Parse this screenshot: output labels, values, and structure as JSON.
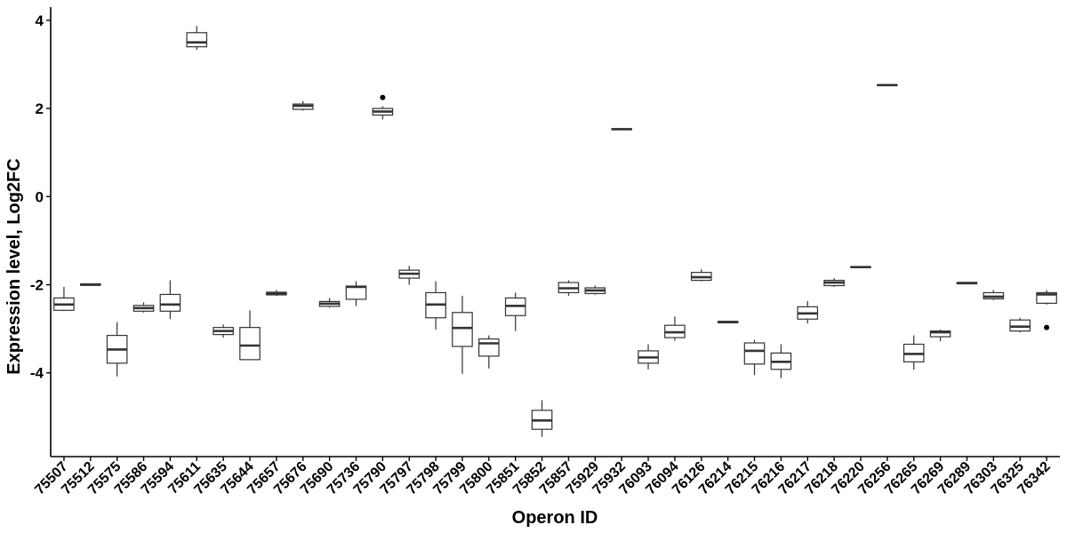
{
  "chart_data": {
    "type": "boxplot",
    "title": "",
    "xlabel": "Operon ID",
    "ylabel": "Expression level, Log2FC",
    "ylim": [
      -5.9,
      4.3
    ],
    "y_ticks": [
      4,
      2,
      0,
      -2,
      -4
    ],
    "y_tick_labels": [
      "4",
      "2",
      "0",
      "-2",
      "-4"
    ],
    "grid": false,
    "legend": "none",
    "colors": {
      "box_fill": "#ffffff",
      "stroke": "#333333",
      "axis": "#000000"
    },
    "categories": [
      "75507",
      "75512",
      "75575",
      "75586",
      "75594",
      "75611",
      "75635",
      "75644",
      "75657",
      "75676",
      "75690",
      "75736",
      "75790",
      "75797",
      "75798",
      "75799",
      "75800",
      "75851",
      "75852",
      "75857",
      "75929",
      "75932",
      "76093",
      "76094",
      "76126",
      "76214",
      "76215",
      "76216",
      "76217",
      "76218",
      "76220",
      "76256",
      "76265",
      "76269",
      "76289",
      "76303",
      "76325",
      "76342"
    ],
    "boxes": [
      {
        "id": "75507",
        "low": -2.6,
        "q1": -2.58,
        "median": -2.45,
        "q3": -2.3,
        "high": -2.05,
        "outliers": []
      },
      {
        "id": "75512",
        "low": -2.02,
        "q1": -2.01,
        "median": -2.0,
        "q3": -1.98,
        "high": -1.97,
        "outliers": []
      },
      {
        "id": "75575",
        "low": -4.08,
        "q1": -3.78,
        "median": -3.47,
        "q3": -3.15,
        "high": -2.85,
        "outliers": []
      },
      {
        "id": "75586",
        "low": -2.63,
        "q1": -2.6,
        "median": -2.53,
        "q3": -2.47,
        "high": -2.4,
        "outliers": []
      },
      {
        "id": "75594",
        "low": -2.78,
        "q1": -2.6,
        "median": -2.45,
        "q3": -2.22,
        "high": -1.9,
        "outliers": []
      },
      {
        "id": "75611",
        "low": 3.33,
        "q1": 3.4,
        "median": 3.5,
        "q3": 3.72,
        "high": 3.87,
        "outliers": []
      },
      {
        "id": "75635",
        "low": -3.2,
        "q1": -3.13,
        "median": -3.05,
        "q3": -2.97,
        "high": -2.9,
        "outliers": []
      },
      {
        "id": "75644",
        "low": -3.7,
        "q1": -3.7,
        "median": -3.38,
        "q3": -2.97,
        "high": -2.58,
        "outliers": []
      },
      {
        "id": "75657",
        "low": -2.25,
        "q1": -2.23,
        "median": -2.2,
        "q3": -2.17,
        "high": -2.12,
        "outliers": []
      },
      {
        "id": "75676",
        "low": 1.95,
        "q1": 1.98,
        "median": 2.06,
        "q3": 2.1,
        "high": 2.17,
        "outliers": []
      },
      {
        "id": "75690",
        "low": -2.52,
        "q1": -2.49,
        "median": -2.43,
        "q3": -2.38,
        "high": -2.3,
        "outliers": []
      },
      {
        "id": "75736",
        "low": -2.48,
        "q1": -2.33,
        "median": -2.05,
        "q3": -2.03,
        "high": -1.92,
        "outliers": []
      },
      {
        "id": "75790",
        "low": 1.75,
        "q1": 1.85,
        "median": 1.93,
        "q3": 2.0,
        "high": 2.05,
        "outliers": [
          2.25
        ]
      },
      {
        "id": "75797",
        "low": -2.0,
        "q1": -1.85,
        "median": -1.75,
        "q3": -1.67,
        "high": -1.57,
        "outliers": []
      },
      {
        "id": "75798",
        "low": -3.02,
        "q1": -2.75,
        "median": -2.45,
        "q3": -2.18,
        "high": -1.92,
        "outliers": []
      },
      {
        "id": "75799",
        "low": -4.02,
        "q1": -3.4,
        "median": -2.98,
        "q3": -2.63,
        "high": -2.25,
        "outliers": []
      },
      {
        "id": "75800",
        "low": -3.9,
        "q1": -3.62,
        "median": -3.33,
        "q3": -3.23,
        "high": -3.15,
        "outliers": []
      },
      {
        "id": "75851",
        "low": -3.05,
        "q1": -2.7,
        "median": -2.48,
        "q3": -2.3,
        "high": -2.18,
        "outliers": []
      },
      {
        "id": "75852",
        "low": -5.45,
        "q1": -5.28,
        "median": -5.08,
        "q3": -4.85,
        "high": -4.62,
        "outliers": []
      },
      {
        "id": "75857",
        "low": -2.25,
        "q1": -2.18,
        "median": -2.08,
        "q3": -1.95,
        "high": -1.9,
        "outliers": []
      },
      {
        "id": "75929",
        "low": -2.23,
        "q1": -2.2,
        "median": -2.13,
        "q3": -2.07,
        "high": -2.02,
        "outliers": []
      },
      {
        "id": "75932",
        "low": 1.52,
        "q1": 1.52,
        "median": 1.53,
        "q3": 1.54,
        "high": 1.54,
        "outliers": []
      },
      {
        "id": "76093",
        "low": -3.92,
        "q1": -3.78,
        "median": -3.65,
        "q3": -3.5,
        "high": -3.35,
        "outliers": []
      },
      {
        "id": "76094",
        "low": -3.27,
        "q1": -3.2,
        "median": -3.08,
        "q3": -2.92,
        "high": -2.72,
        "outliers": []
      },
      {
        "id": "76126",
        "low": -1.92,
        "q1": -1.9,
        "median": -1.83,
        "q3": -1.72,
        "high": -1.65,
        "outliers": []
      },
      {
        "id": "76214",
        "low": -2.87,
        "q1": -2.86,
        "median": -2.85,
        "q3": -2.83,
        "high": -2.82,
        "outliers": []
      },
      {
        "id": "76215",
        "low": -4.05,
        "q1": -3.8,
        "median": -3.5,
        "q3": -3.32,
        "high": -3.25,
        "outliers": []
      },
      {
        "id": "76216",
        "low": -4.12,
        "q1": -3.92,
        "median": -3.75,
        "q3": -3.55,
        "high": -3.35,
        "outliers": []
      },
      {
        "id": "76217",
        "low": -2.88,
        "q1": -2.78,
        "median": -2.65,
        "q3": -2.5,
        "high": -2.37,
        "outliers": []
      },
      {
        "id": "76218",
        "low": -2.05,
        "q1": -2.02,
        "median": -1.95,
        "q3": -1.9,
        "high": -1.85,
        "outliers": []
      },
      {
        "id": "76220",
        "low": -1.62,
        "q1": -1.61,
        "median": -1.6,
        "q3": -1.59,
        "high": -1.58,
        "outliers": []
      },
      {
        "id": "76256",
        "low": 2.52,
        "q1": 2.52,
        "median": 2.53,
        "q3": 2.54,
        "high": 2.54,
        "outliers": []
      },
      {
        "id": "76265",
        "low": -3.93,
        "q1": -3.75,
        "median": -3.57,
        "q3": -3.35,
        "high": -3.15,
        "outliers": []
      },
      {
        "id": "76269",
        "low": -3.28,
        "q1": -3.18,
        "median": -3.08,
        "q3": -3.05,
        "high": -3.02,
        "outliers": []
      },
      {
        "id": "76289",
        "low": -1.99,
        "q1": -1.98,
        "median": -1.96,
        "q3": -1.95,
        "high": -1.94,
        "outliers": []
      },
      {
        "id": "76303",
        "low": -2.35,
        "q1": -2.32,
        "median": -2.27,
        "q3": -2.18,
        "high": -2.12,
        "outliers": []
      },
      {
        "id": "76325",
        "low": -3.08,
        "q1": -3.05,
        "median": -2.95,
        "q3": -2.8,
        "high": -2.75,
        "outliers": []
      },
      {
        "id": "76342",
        "low": -2.45,
        "q1": -2.42,
        "median": -2.22,
        "q3": -2.18,
        "high": -2.12,
        "outliers": [
          -2.97
        ]
      }
    ]
  }
}
